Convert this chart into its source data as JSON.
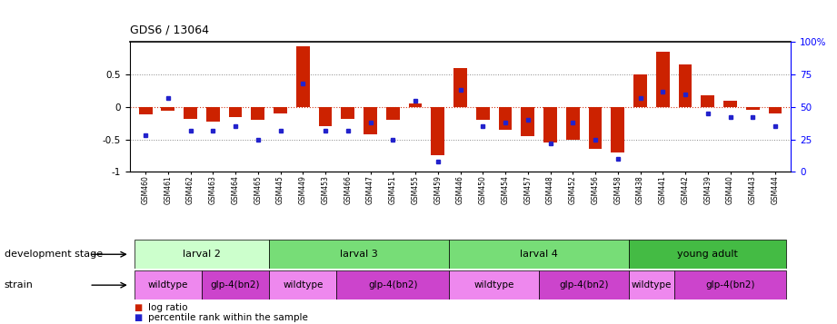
{
  "title": "GDS6 / 13064",
  "samples": [
    "GSM460",
    "GSM461",
    "GSM462",
    "GSM463",
    "GSM464",
    "GSM465",
    "GSM445",
    "GSM449",
    "GSM453",
    "GSM466",
    "GSM447",
    "GSM451",
    "GSM455",
    "GSM459",
    "GSM446",
    "GSM450",
    "GSM454",
    "GSM457",
    "GSM448",
    "GSM452",
    "GSM456",
    "GSM458",
    "GSM438",
    "GSM441",
    "GSM442",
    "GSM439",
    "GSM440",
    "GSM443",
    "GSM444"
  ],
  "log_ratio": [
    -0.12,
    -0.06,
    -0.18,
    -0.22,
    -0.15,
    -0.2,
    -0.1,
    0.93,
    -0.3,
    -0.18,
    -0.42,
    -0.2,
    0.05,
    -0.75,
    0.6,
    -0.2,
    -0.35,
    -0.45,
    -0.55,
    -0.5,
    -0.65,
    -0.7,
    0.5,
    0.85,
    0.65,
    0.18,
    0.1,
    -0.05,
    -0.1
  ],
  "percentile": [
    0.28,
    0.57,
    0.32,
    0.32,
    0.35,
    0.25,
    0.32,
    0.68,
    0.32,
    0.32,
    0.38,
    0.25,
    0.55,
    0.08,
    0.63,
    0.35,
    0.38,
    0.4,
    0.22,
    0.38,
    0.25,
    0.1,
    0.57,
    0.62,
    0.6,
    0.45,
    0.42,
    0.42,
    0.35
  ],
  "bar_color": "#cc2200",
  "dot_color": "#2222cc",
  "ylim": [
    -1.0,
    1.0
  ],
  "right_ylim": [
    0,
    100
  ],
  "right_yticks": [
    0,
    25,
    50,
    75,
    100
  ],
  "right_yticklabels": [
    "0",
    "25",
    "50",
    "75",
    "100%"
  ],
  "left_yticks": [
    -1.0,
    -0.5,
    0.0,
    0.5
  ],
  "left_yticklabels": [
    "-1",
    "-0.5",
    "0",
    "0.5"
  ],
  "hline_y": 0.0,
  "dotted_lines": [
    -0.5,
    0.5
  ],
  "development_stages": [
    {
      "label": "larval 2",
      "start": 0,
      "end": 6,
      "color": "#ccffcc"
    },
    {
      "label": "larval 3",
      "start": 6,
      "end": 14,
      "color": "#77dd77"
    },
    {
      "label": "larval 4",
      "start": 14,
      "end": 22,
      "color": "#77dd77"
    },
    {
      "label": "young adult",
      "start": 22,
      "end": 29,
      "color": "#44bb44"
    }
  ],
  "strains": [
    {
      "label": "wildtype",
      "start": 0,
      "end": 3,
      "color": "#ee88ee"
    },
    {
      "label": "glp-4(bn2)",
      "start": 3,
      "end": 6,
      "color": "#cc44cc"
    },
    {
      "label": "wildtype",
      "start": 6,
      "end": 9,
      "color": "#ee88ee"
    },
    {
      "label": "glp-4(bn2)",
      "start": 9,
      "end": 14,
      "color": "#cc44cc"
    },
    {
      "label": "wildtype",
      "start": 14,
      "end": 18,
      "color": "#ee88ee"
    },
    {
      "label": "glp-4(bn2)",
      "start": 18,
      "end": 22,
      "color": "#cc44cc"
    },
    {
      "label": "wildtype",
      "start": 22,
      "end": 24,
      "color": "#ee88ee"
    },
    {
      "label": "glp-4(bn2)",
      "start": 24,
      "end": 29,
      "color": "#cc44cc"
    }
  ],
  "stage_label": "development stage",
  "strain_label": "strain",
  "legend_items": [
    {
      "color": "#cc2200",
      "label": "log ratio"
    },
    {
      "color": "#2222cc",
      "label": "percentile rank within the sample"
    }
  ]
}
